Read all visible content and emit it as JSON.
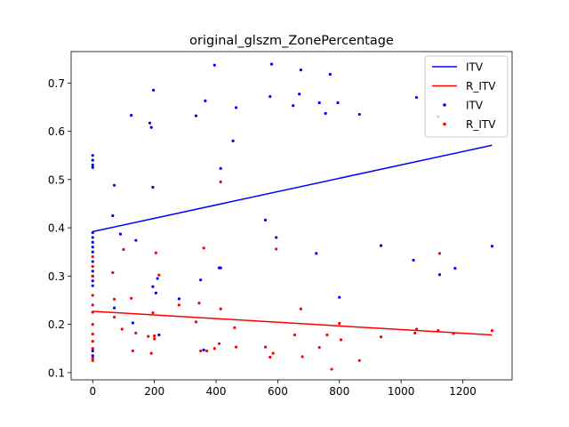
{
  "chart_data": {
    "type": "scatter",
    "title": "original_glszm_ZonePercentage",
    "xlabel": "",
    "ylabel": "",
    "xlim": [
      -70,
      1360
    ],
    "ylim": [
      0.085,
      0.765
    ],
    "xticks": [
      0,
      200,
      400,
      600,
      800,
      1000,
      1200
    ],
    "yticks": [
      0.1,
      0.2,
      0.3,
      0.4,
      0.5,
      0.6,
      0.7
    ],
    "grid": false,
    "legend": {
      "placement": "top-right",
      "entries": [
        "ITV",
        "R_ITV",
        "ITV",
        "R_ITV"
      ]
    },
    "colors": {
      "ITV": "#0000ff",
      "R_ITV": "#ff0000"
    },
    "series": [
      {
        "name": "ITV",
        "kind": "line",
        "color": "#0000ff",
        "x": [
          0,
          1295
        ],
        "y": [
          0.392,
          0.571
        ]
      },
      {
        "name": "R_ITV",
        "kind": "line",
        "color": "#ff0000",
        "x": [
          0,
          1295
        ],
        "y": [
          0.227,
          0.178
        ]
      },
      {
        "name": "ITV",
        "kind": "scatter",
        "color": "#0000ff",
        "points": [
          [
            0,
            0.55
          ],
          [
            0,
            0.54
          ],
          [
            0,
            0.53
          ],
          [
            0,
            0.525
          ],
          [
            0,
            0.39
          ],
          [
            0,
            0.38
          ],
          [
            0,
            0.37
          ],
          [
            0,
            0.36
          ],
          [
            0,
            0.35
          ],
          [
            0,
            0.33
          ],
          [
            0,
            0.31
          ],
          [
            0,
            0.3
          ],
          [
            0,
            0.29
          ],
          [
            0,
            0.28
          ],
          [
            0,
            0.145
          ],
          [
            0,
            0.135
          ],
          [
            65,
            0.425
          ],
          [
            70,
            0.488
          ],
          [
            70,
            0.234
          ],
          [
            90,
            0.387
          ],
          [
            125,
            0.633
          ],
          [
            130,
            0.203
          ],
          [
            140,
            0.374
          ],
          [
            185,
            0.617
          ],
          [
            190,
            0.608
          ],
          [
            195,
            0.484
          ],
          [
            195,
            0.278
          ],
          [
            197,
            0.685
          ],
          [
            205,
            0.265
          ],
          [
            210,
            0.295
          ],
          [
            215,
            0.178
          ],
          [
            280,
            0.253
          ],
          [
            335,
            0.632
          ],
          [
            350,
            0.292
          ],
          [
            360,
            0.147
          ],
          [
            365,
            0.663
          ],
          [
            395,
            0.737
          ],
          [
            410,
            0.317
          ],
          [
            415,
            0.523
          ],
          [
            415,
            0.317
          ],
          [
            455,
            0.58
          ],
          [
            465,
            0.649
          ],
          [
            560,
            0.416
          ],
          [
            575,
            0.672
          ],
          [
            580,
            0.739
          ],
          [
            595,
            0.38
          ],
          [
            650,
            0.653
          ],
          [
            670,
            0.677
          ],
          [
            675,
            0.727
          ],
          [
            725,
            0.347
          ],
          [
            735,
            0.659
          ],
          [
            755,
            0.637
          ],
          [
            770,
            0.718
          ],
          [
            795,
            0.659
          ],
          [
            800,
            0.256
          ],
          [
            865,
            0.635
          ],
          [
            935,
            0.363
          ],
          [
            1040,
            0.333
          ],
          [
            1050,
            0.67
          ],
          [
            1120,
            0.63
          ],
          [
            1125,
            0.303
          ],
          [
            1175,
            0.316
          ],
          [
            1295,
            0.362
          ]
        ]
      },
      {
        "name": "R_ITV",
        "kind": "scatter",
        "color": "#ff0000",
        "points": [
          [
            0,
            0.34
          ],
          [
            0,
            0.32
          ],
          [
            0,
            0.3
          ],
          [
            0,
            0.26
          ],
          [
            0,
            0.24
          ],
          [
            0,
            0.225
          ],
          [
            0,
            0.2
          ],
          [
            0,
            0.18
          ],
          [
            0,
            0.165
          ],
          [
            0,
            0.15
          ],
          [
            0,
            0.13
          ],
          [
            0,
            0.125
          ],
          [
            65,
            0.307
          ],
          [
            70,
            0.252
          ],
          [
            70,
            0.215
          ],
          [
            95,
            0.19
          ],
          [
            100,
            0.355
          ],
          [
            125,
            0.254
          ],
          [
            130,
            0.145
          ],
          [
            140,
            0.182
          ],
          [
            180,
            0.175
          ],
          [
            190,
            0.14
          ],
          [
            195,
            0.224
          ],
          [
            200,
            0.176
          ],
          [
            200,
            0.17
          ],
          [
            205,
            0.348
          ],
          [
            215,
            0.302
          ],
          [
            280,
            0.24
          ],
          [
            335,
            0.205
          ],
          [
            345,
            0.244
          ],
          [
            350,
            0.145
          ],
          [
            360,
            0.358
          ],
          [
            370,
            0.145
          ],
          [
            395,
            0.15
          ],
          [
            410,
            0.16
          ],
          [
            415,
            0.495
          ],
          [
            415,
            0.232
          ],
          [
            460,
            0.193
          ],
          [
            465,
            0.153
          ],
          [
            560,
            0.153
          ],
          [
            575,
            0.132
          ],
          [
            585,
            0.14
          ],
          [
            595,
            0.356
          ],
          [
            655,
            0.178
          ],
          [
            675,
            0.232
          ],
          [
            680,
            0.133
          ],
          [
            735,
            0.152
          ],
          [
            760,
            0.178
          ],
          [
            775,
            0.107
          ],
          [
            800,
            0.202
          ],
          [
            805,
            0.168
          ],
          [
            865,
            0.125
          ],
          [
            935,
            0.174
          ],
          [
            1045,
            0.182
          ],
          [
            1050,
            0.19
          ],
          [
            1120,
            0.187
          ],
          [
            1125,
            0.347
          ],
          [
            1170,
            0.181
          ],
          [
            1295,
            0.187
          ]
        ]
      }
    ]
  }
}
